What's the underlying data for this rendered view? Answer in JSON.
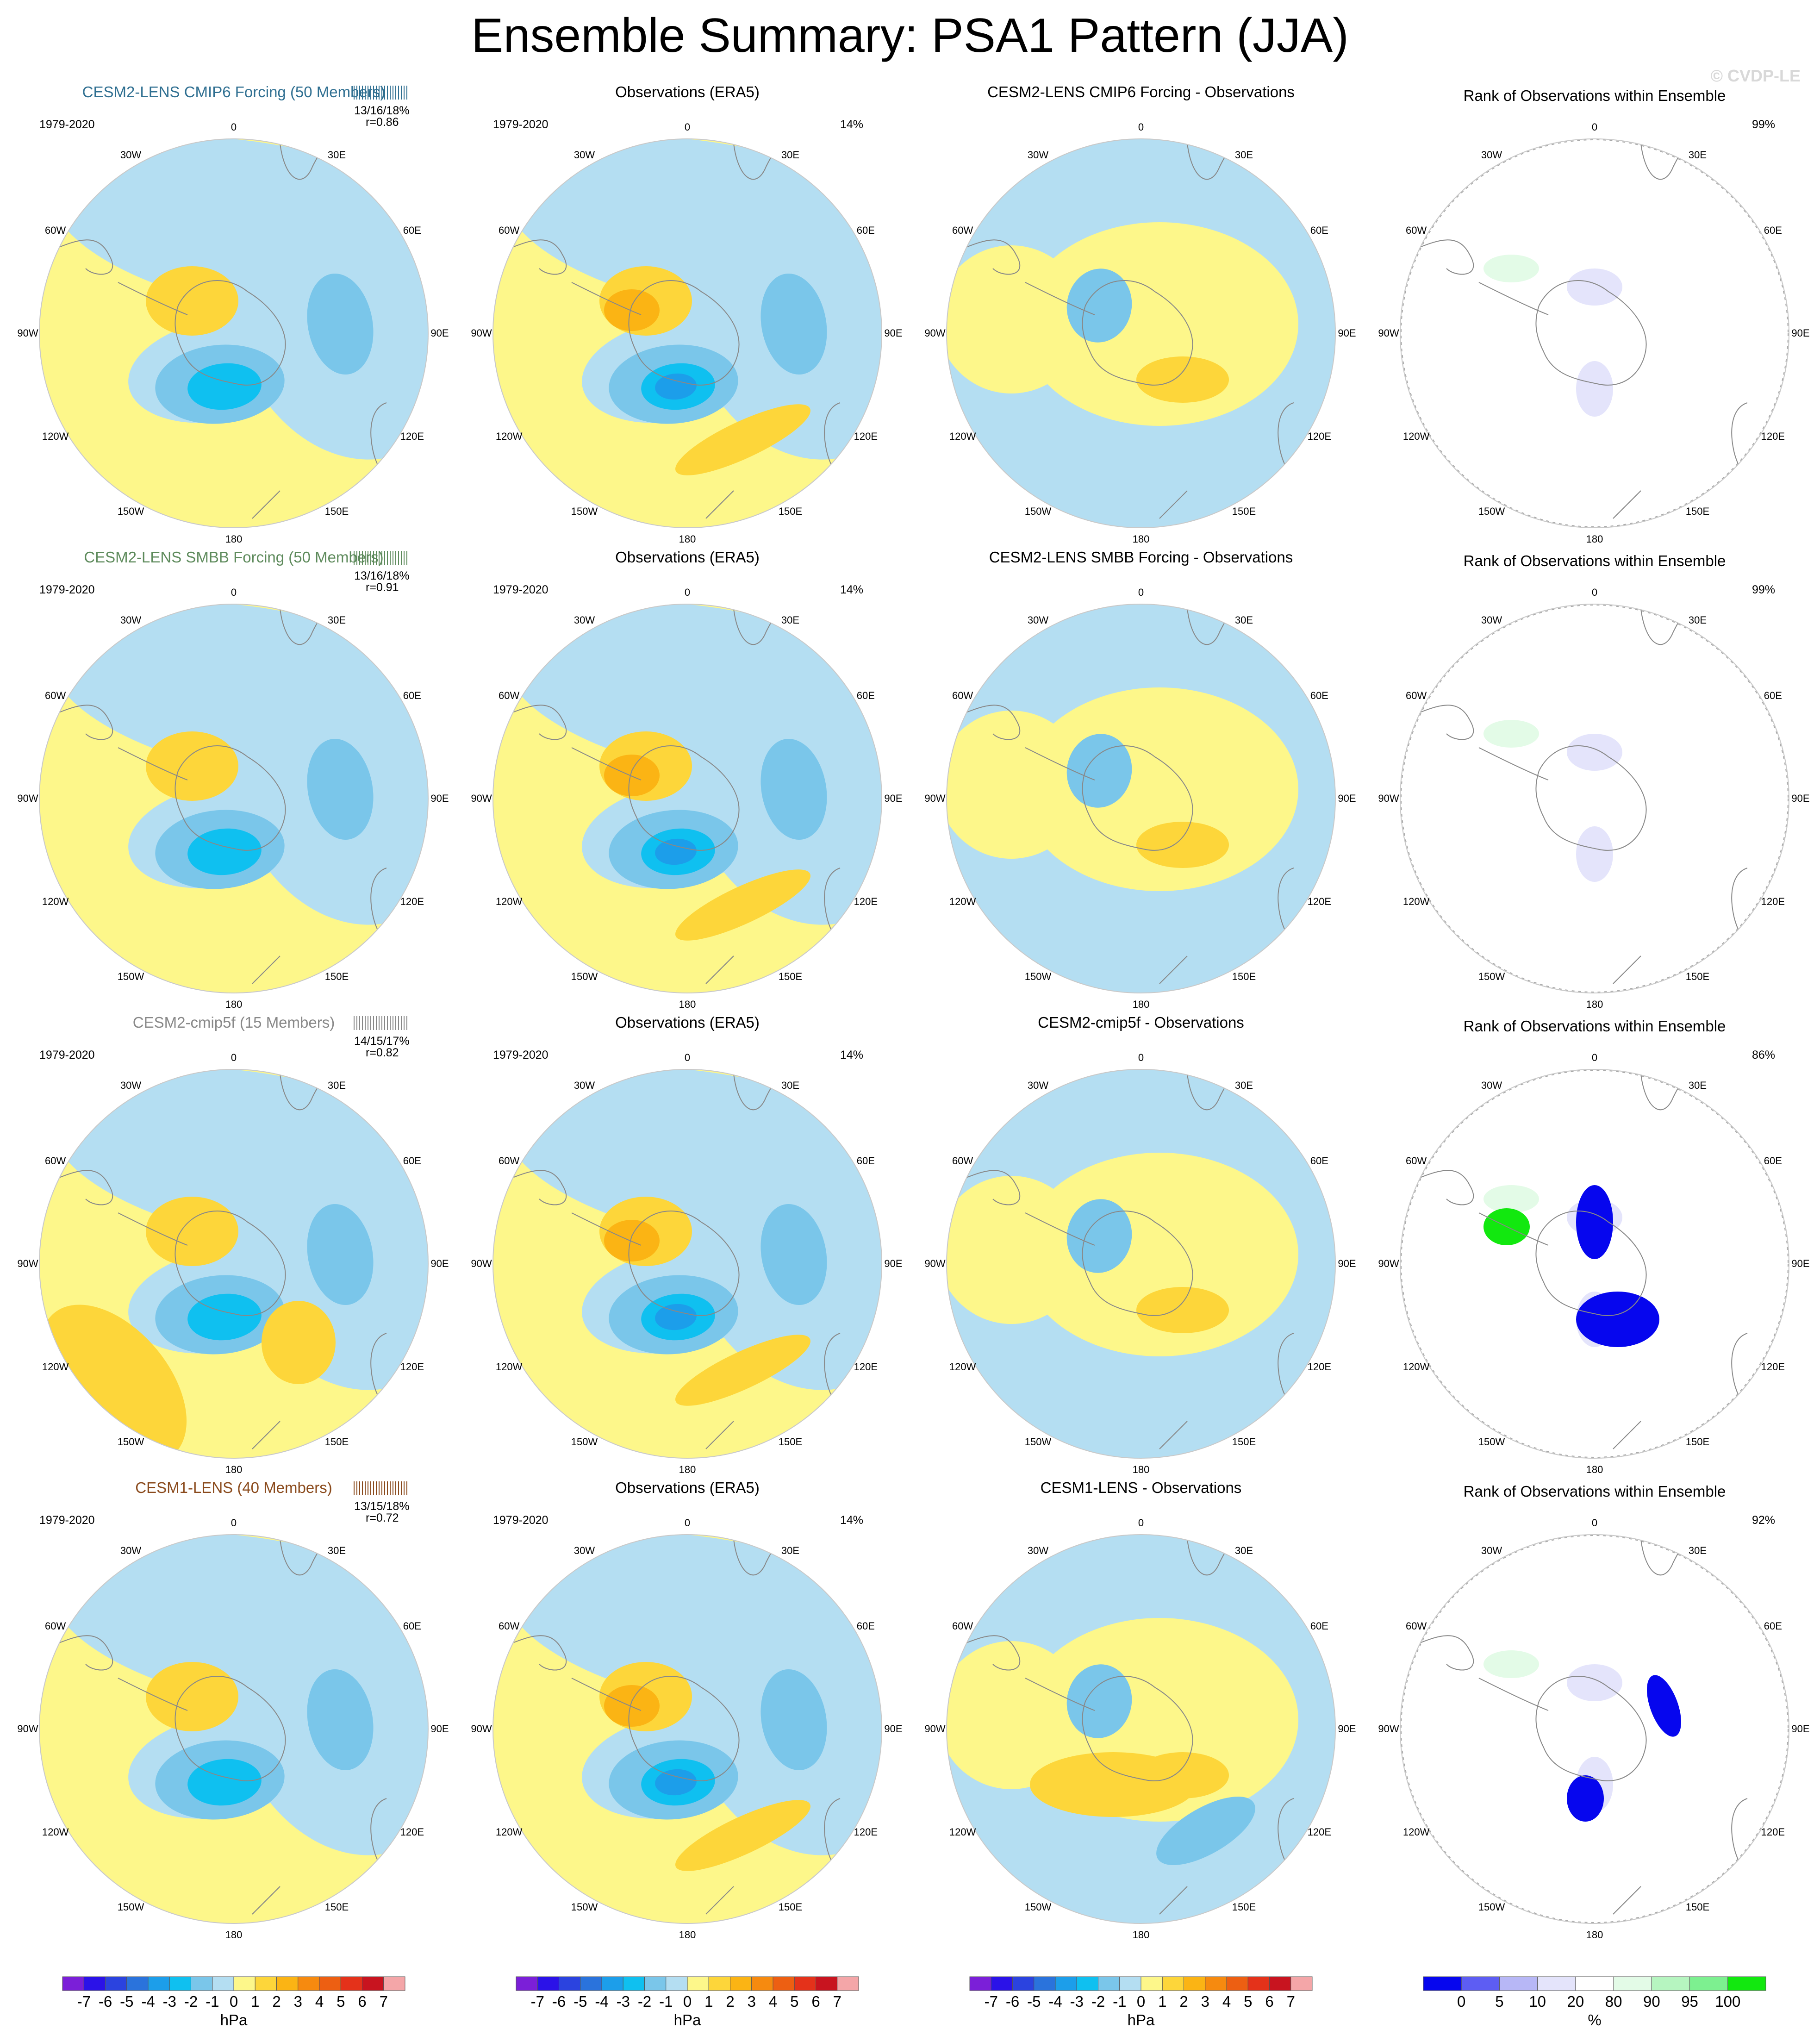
{
  "title": "Ensemble Summary: PSA1 Pattern (JJA)",
  "copyright": "© CVDP-LE",
  "colors": {
    "hpa_levels": [
      "#7b1fd8",
      "#2b12e8",
      "#2b43df",
      "#2a73dc",
      "#1c9eea",
      "#0fc0f0",
      "#7ac6ea",
      "#b4def2",
      "#fdf78a",
      "#fdd63a",
      "#fbb414",
      "#f68a0f",
      "#ed5f12",
      "#e4321a",
      "#c8141f",
      "#f4a6a8"
    ],
    "rank_levels": [
      "#0606ee",
      "#5d5df3",
      "#b7b7f6",
      "#e4e4fb",
      "#ffffff",
      "#e3fbe7",
      "#b6f5c0",
      "#7df090",
      "#12e80f"
    ],
    "coast": "#888888",
    "pattern": {
      "lightblue": "#b4def2",
      "blue": "#7ac6ea",
      "cyan": "#0fc0f0",
      "deepblue": "#1c9eea",
      "yellow": "#fdf78a",
      "orange": "#fdd63a",
      "darkorange": "#fbb414",
      "deeporange": "#f68a0f"
    }
  },
  "lon_labels": [
    "0",
    "30E",
    "60E",
    "90E",
    "120E",
    "150E",
    "180",
    "150W",
    "120W",
    "90W",
    "60W",
    "30W"
  ],
  "rows": [
    {
      "model_title": "CESM2-LENS CMIP6 Forcing (50 Members)",
      "model_color": "#2f6f91",
      "period": "1979-2020",
      "stats": "13/16/18%",
      "corr": "r=0.86",
      "obs_title": "Observations (ERA5)",
      "obs_period": "1979-2020",
      "obs_pct": "14%",
      "diff_title": "CESM2-LENS CMIP6 Forcing - Observations",
      "rank_title": "Rank of Observations within Ensemble",
      "rank_pct": "99%"
    },
    {
      "model_title": "CESM2-LENS SMBB Forcing (50 Members)",
      "model_color": "#5d8a5b",
      "period": "1979-2020",
      "stats": "13/16/18%",
      "corr": "r=0.91",
      "obs_title": "Observations (ERA5)",
      "obs_period": "1979-2020",
      "obs_pct": "14%",
      "diff_title": "CESM2-LENS SMBB Forcing - Observations",
      "rank_title": "Rank of Observations within Ensemble",
      "rank_pct": "99%"
    },
    {
      "model_title": "CESM2-cmip5f (15 Members)",
      "model_color": "#888888",
      "period": "1979-2020",
      "stats": "14/15/17%",
      "corr": "r=0.82",
      "obs_title": "Observations (ERA5)",
      "obs_period": "1979-2020",
      "obs_pct": "14%",
      "diff_title": "CESM2-cmip5f - Observations",
      "rank_title": "Rank of Observations within Ensemble",
      "rank_pct": "86%"
    },
    {
      "model_title": "CESM1-LENS (40 Members)",
      "model_color": "#8a4a1c",
      "period": "1979-2020",
      "stats": "13/15/18%",
      "corr": "r=0.72",
      "obs_title": "Observations (ERA5)",
      "obs_period": "1979-2020",
      "obs_pct": "14%",
      "diff_title": "CESM1-LENS - Observations",
      "rank_title": "Rank of Observations within Ensemble",
      "rank_pct": "92%"
    }
  ],
  "colorbars": {
    "hpa_ticks": [
      "-7",
      "-6",
      "-5",
      "-4",
      "-3",
      "-2",
      "-1",
      "0",
      "1",
      "2",
      "3",
      "4",
      "5",
      "6",
      "7"
    ],
    "hpa_unit": "hPa",
    "rank_ticks": [
      "0",
      "5",
      "10",
      "20",
      "80",
      "90",
      "95",
      "100"
    ],
    "rank_unit": "%"
  },
  "chart_data": {
    "type": "heatmap",
    "title": "Ensemble Summary: PSA1 Pattern (JJA)",
    "projection": "south polar stereographic",
    "hpa_contour_levels": [
      -7,
      -6,
      -5,
      -4,
      -3,
      -2,
      -1,
      0,
      1,
      2,
      3,
      4,
      5,
      6,
      7
    ],
    "rank_contour_levels": [
      0,
      5,
      10,
      20,
      80,
      90,
      95,
      100
    ],
    "panels": [
      {
        "row": 1,
        "column": "model",
        "title": "CESM2-LENS CMIP6 Forcing (50 Members)",
        "period": "1979-2020",
        "pct_variance": "13/16/18%",
        "pattern_correlation": 0.86
      },
      {
        "row": 1,
        "column": "observations",
        "title": "Observations (ERA5)",
        "period": "1979-2020",
        "pct_variance": "14%"
      },
      {
        "row": 1,
        "column": "difference",
        "title": "CESM2-LENS CMIP6 Forcing - Observations",
        "units": "hPa"
      },
      {
        "row": 1,
        "column": "rank",
        "title": "Rank of Observations within Ensemble",
        "pct": "99%"
      },
      {
        "row": 2,
        "column": "model",
        "title": "CESM2-LENS SMBB Forcing (50 Members)",
        "period": "1979-2020",
        "pct_variance": "13/16/18%",
        "pattern_correlation": 0.91
      },
      {
        "row": 2,
        "column": "observations",
        "title": "Observations (ERA5)",
        "period": "1979-2020",
        "pct_variance": "14%"
      },
      {
        "row": 2,
        "column": "difference",
        "title": "CESM2-LENS SMBB Forcing - Observations",
        "units": "hPa"
      },
      {
        "row": 2,
        "column": "rank",
        "title": "Rank of Observations within Ensemble",
        "pct": "99%"
      },
      {
        "row": 3,
        "column": "model",
        "title": "CESM2-cmip5f (15 Members)",
        "period": "1979-2020",
        "pct_variance": "14/15/17%",
        "pattern_correlation": 0.82
      },
      {
        "row": 3,
        "column": "observations",
        "title": "Observations (ERA5)",
        "period": "1979-2020",
        "pct_variance": "14%"
      },
      {
        "row": 3,
        "column": "difference",
        "title": "CESM2-cmip5f - Observations",
        "units": "hPa"
      },
      {
        "row": 3,
        "column": "rank",
        "title": "Rank of Observations within Ensemble",
        "pct": "86%"
      },
      {
        "row": 4,
        "column": "model",
        "title": "CESM1-LENS (40 Members)",
        "period": "1979-2020",
        "pct_variance": "13/15/18%",
        "pattern_correlation": 0.72
      },
      {
        "row": 4,
        "column": "observations",
        "title": "Observations (ERA5)",
        "period": "1979-2020",
        "pct_variance": "14%"
      },
      {
        "row": 4,
        "column": "difference",
        "title": "CESM1-LENS - Observations",
        "units": "hPa"
      },
      {
        "row": 4,
        "column": "rank",
        "title": "Rank of Observations within Ensemble",
        "pct": "92%"
      }
    ]
  }
}
